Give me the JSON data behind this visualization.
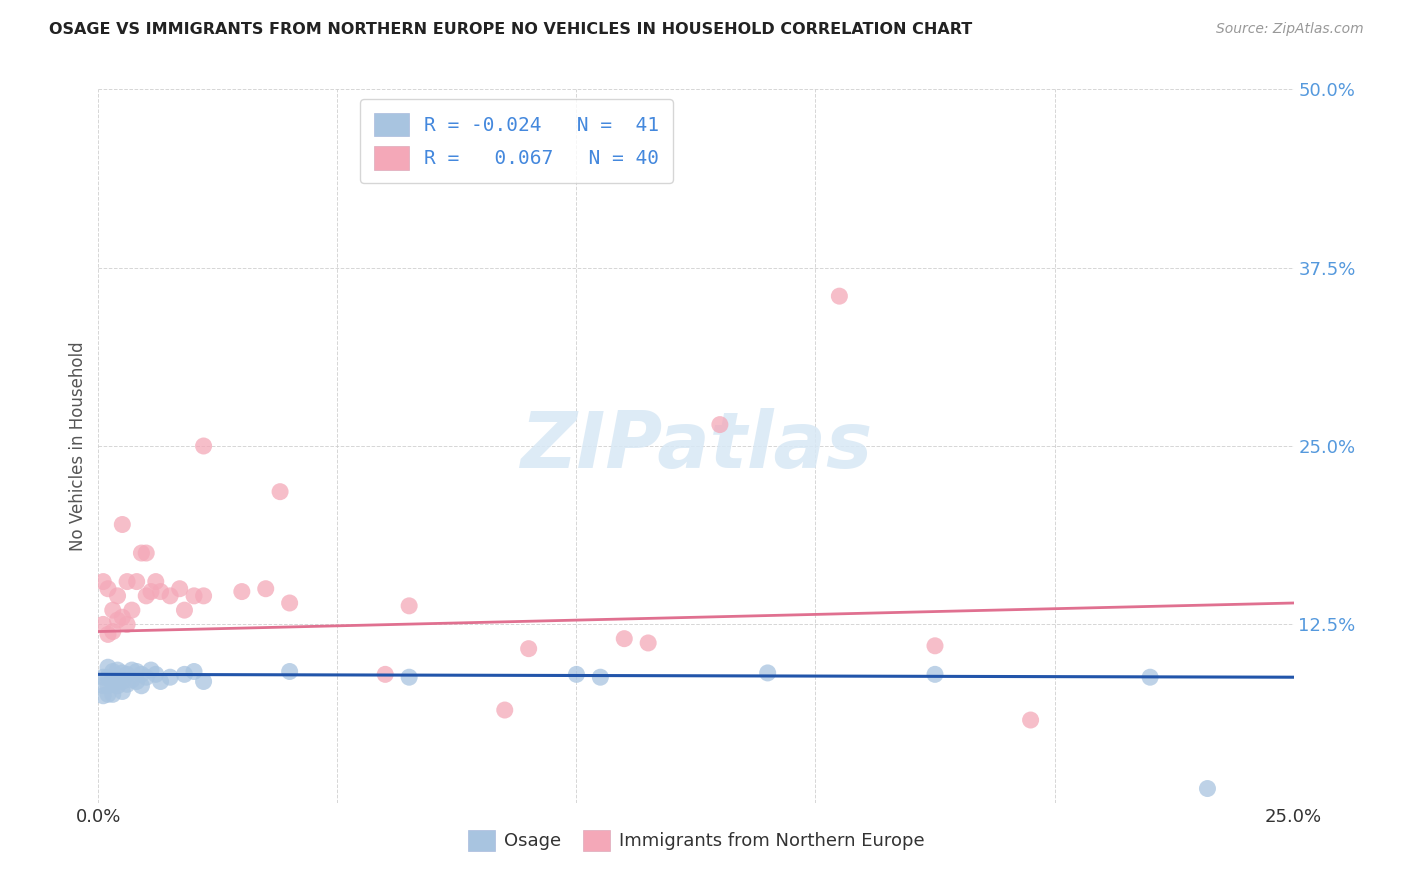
{
  "title": "OSAGE VS IMMIGRANTS FROM NORTHERN EUROPE NO VEHICLES IN HOUSEHOLD CORRELATION CHART",
  "source": "Source: ZipAtlas.com",
  "ylabel": "No Vehicles in Household",
  "xlim": [
    0.0,
    0.25
  ],
  "ylim": [
    0.0,
    0.5
  ],
  "xticks": [
    0.0,
    0.05,
    0.1,
    0.15,
    0.2,
    0.25
  ],
  "yticks": [
    0.0,
    0.125,
    0.25,
    0.375,
    0.5
  ],
  "xticklabels": [
    "0.0%",
    "",
    "",
    "",
    "",
    "25.0%"
  ],
  "yticklabels": [
    "",
    "12.5%",
    "25.0%",
    "37.5%",
    "50.0%"
  ],
  "blue_color": "#a8c4e0",
  "pink_color": "#f4a8b8",
  "blue_line_color": "#2255aa",
  "pink_line_color": "#e07090",
  "watermark": "ZIPatlas",
  "legend_r_blue": "R = -0.024",
  "legend_n_blue": "N =  41",
  "legend_r_pink": "R =   0.067",
  "legend_n_pink": "N = 40",
  "osage_x": [
    0.001,
    0.001,
    0.001,
    0.002,
    0.002,
    0.002,
    0.002,
    0.003,
    0.003,
    0.003,
    0.003,
    0.004,
    0.004,
    0.004,
    0.005,
    0.005,
    0.005,
    0.006,
    0.006,
    0.007,
    0.007,
    0.008,
    0.008,
    0.009,
    0.009,
    0.01,
    0.011,
    0.012,
    0.013,
    0.015,
    0.018,
    0.02,
    0.022,
    0.04,
    0.065,
    0.1,
    0.105,
    0.14,
    0.175,
    0.22,
    0.232
  ],
  "osage_y": [
    0.088,
    0.082,
    0.075,
    0.095,
    0.088,
    0.082,
    0.076,
    0.092,
    0.087,
    0.083,
    0.076,
    0.093,
    0.087,
    0.082,
    0.091,
    0.085,
    0.078,
    0.09,
    0.083,
    0.093,
    0.086,
    0.092,
    0.085,
    0.09,
    0.082,
    0.088,
    0.093,
    0.09,
    0.085,
    0.088,
    0.09,
    0.092,
    0.085,
    0.092,
    0.088,
    0.09,
    0.088,
    0.091,
    0.09,
    0.088,
    0.01
  ],
  "immigrants_x": [
    0.001,
    0.001,
    0.002,
    0.002,
    0.003,
    0.003,
    0.004,
    0.004,
    0.005,
    0.005,
    0.006,
    0.006,
    0.007,
    0.008,
    0.009,
    0.01,
    0.01,
    0.011,
    0.012,
    0.013,
    0.015,
    0.017,
    0.018,
    0.02,
    0.022,
    0.03,
    0.035,
    0.04,
    0.065,
    0.09,
    0.11,
    0.13,
    0.155,
    0.175,
    0.195,
    0.115,
    0.022,
    0.038,
    0.06,
    0.085
  ],
  "immigrants_y": [
    0.155,
    0.125,
    0.15,
    0.118,
    0.135,
    0.12,
    0.145,
    0.128,
    0.195,
    0.13,
    0.155,
    0.125,
    0.135,
    0.155,
    0.175,
    0.175,
    0.145,
    0.148,
    0.155,
    0.148,
    0.145,
    0.15,
    0.135,
    0.145,
    0.145,
    0.148,
    0.15,
    0.14,
    0.138,
    0.108,
    0.115,
    0.265,
    0.355,
    0.11,
    0.058,
    0.112,
    0.25,
    0.218,
    0.09,
    0.065
  ],
  "blue_trend_x": [
    0.0,
    0.25
  ],
  "blue_trend_y": [
    0.09,
    0.088
  ],
  "pink_trend_x": [
    0.0,
    0.25
  ],
  "pink_trend_y": [
    0.12,
    0.14
  ]
}
